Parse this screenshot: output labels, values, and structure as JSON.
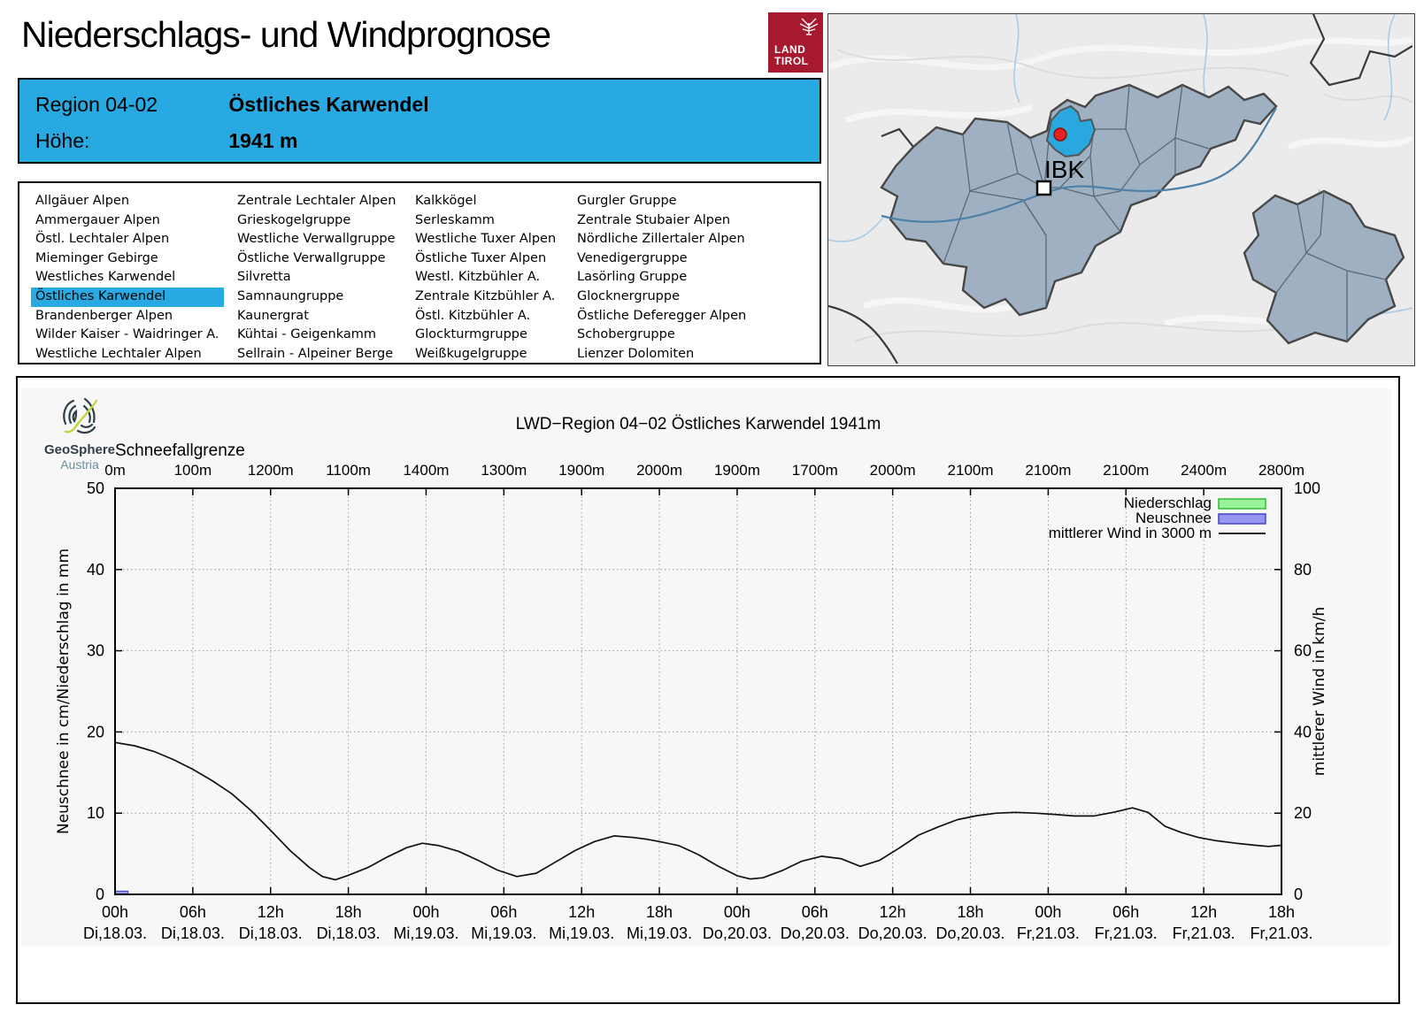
{
  "header": {
    "title": "Niederschlags- und Windprognose",
    "logo": {
      "line1": "LAND",
      "line2": "TIROL",
      "color": "#a6192e"
    }
  },
  "info_box": {
    "region_label": "Region 04-02",
    "region_name": "Östliches Karwendel",
    "hoehe_label": "Höhe:",
    "hoehe_value": "1941 m",
    "background": "#29a9e1"
  },
  "region_list": {
    "selected": "Östliches Karwendel",
    "columns": [
      [
        "Allgäuer Alpen",
        "Ammergauer Alpen",
        "Östl. Lechtaler Alpen",
        "Mieminger Gebirge",
        "Westliches Karwendel",
        "Östliches Karwendel",
        "Brandenberger Alpen",
        "Wilder Kaiser - Waidringer A.",
        "Westliche Lechtaler Alpen"
      ],
      [
        "Zentrale Lechtaler Alpen",
        "Grieskogelgruppe",
        "Westliche Verwallgruppe",
        "Östliche Verwallgruppe",
        "Silvretta",
        "Samnaungruppe",
        "Kaunergrat",
        "Kühtai - Geigenkamm",
        "Sellrain - Alpeiner Berge"
      ],
      [
        "Kalkkögel",
        "Serleskamm",
        "Westliche Tuxer Alpen",
        "Östliche Tuxer Alpen",
        "Westl. Kitzbühler A.",
        "Zentrale Kitzbühler A.",
        "Östl. Kitzbühler A.",
        "Glockturmgruppe",
        "Weißkugelgruppe"
      ],
      [
        "Gurgler Gruppe",
        "Zentrale Stubaier Alpen",
        "Nördliche Zillertaler Alpen",
        "Venedigergruppe",
        "Lasörling Gruppe",
        "Glocknergruppe",
        "Östliche Deferegger Alpen",
        "Schobergruppe",
        "Lienzer Dolomiten"
      ]
    ]
  },
  "map": {
    "city_label": "IBK",
    "region_fill": "#9fb0c2",
    "highlight_fill": "#29a8e0",
    "marker_color": "#e32222",
    "river_color": "#4f81a8",
    "stream_color": "#a8cce6",
    "background": "#ebebeb"
  },
  "geosphere": {
    "name": "GeoSphere",
    "country": "Austria"
  },
  "chart_data": {
    "type": "line",
    "title": "LWD−Region 04−02 Östliches Karwendel 1941m",
    "background": "#f7f7f7",
    "snowline": {
      "label": "Schneefallgrenze",
      "labels": [
        "0m",
        "100m",
        "1200m",
        "1100m",
        "1400m",
        "1300m",
        "1900m",
        "2000m",
        "1900m",
        "1700m",
        "2000m",
        "2100m",
        "2100m",
        "2100m",
        "2400m",
        "2800m"
      ],
      "values_m": [
        0,
        100,
        1200,
        1100,
        1400,
        1300,
        1900,
        2000,
        1900,
        1700,
        2000,
        2100,
        2100,
        2100,
        2400,
        2800
      ]
    },
    "x_axis": {
      "total_hours": 90,
      "tick_step_hours": 6,
      "ticks": [
        {
          "time": "00h",
          "date": "Di,18.03."
        },
        {
          "time": "06h",
          "date": "Di,18.03."
        },
        {
          "time": "12h",
          "date": "Di,18.03."
        },
        {
          "time": "18h",
          "date": "Di,18.03."
        },
        {
          "time": "00h",
          "date": "Mi,19.03."
        },
        {
          "time": "06h",
          "date": "Mi,19.03."
        },
        {
          "time": "12h",
          "date": "Mi,19.03."
        },
        {
          "time": "18h",
          "date": "Mi,19.03."
        },
        {
          "time": "00h",
          "date": "Do,20.03."
        },
        {
          "time": "06h",
          "date": "Do,20.03."
        },
        {
          "time": "12h",
          "date": "Do,20.03."
        },
        {
          "time": "18h",
          "date": "Do,20.03."
        },
        {
          "time": "00h",
          "date": "Fr,21.03."
        },
        {
          "time": "06h",
          "date": "Fr,21.03."
        },
        {
          "time": "12h",
          "date": "Fr,21.03."
        },
        {
          "time": "18h",
          "date": "Fr,21.03."
        }
      ]
    },
    "left_axis": {
      "label": "Neuschnee in cm/Niederschlag in mm",
      "min": 0,
      "max": 50,
      "ticks": [
        0,
        10,
        20,
        30,
        40,
        50
      ]
    },
    "right_axis": {
      "label": "mittlerer Wind in km/h",
      "min": 0,
      "max": 100,
      "ticks": [
        0,
        20,
        40,
        60,
        80,
        100
      ]
    },
    "legend": [
      {
        "label": "Niederschlag",
        "swatch": "box",
        "fill": "#99f499",
        "stroke": "#2db52d"
      },
      {
        "label": "Neuschnee",
        "swatch": "box",
        "fill": "#9695ef",
        "stroke": "#3b3bc8"
      },
      {
        "label": "mittlerer Wind in 3000 m",
        "swatch": "line",
        "stroke": "#000000"
      }
    ],
    "series": [
      {
        "name": "mittlerer Wind in 3000 m",
        "type": "line",
        "axis": "right",
        "unit": "km/h",
        "points": [
          [
            0,
            37.4
          ],
          [
            1.5,
            36.6
          ],
          [
            3,
            35.2
          ],
          [
            4.5,
            33.2
          ],
          [
            6,
            30.8
          ],
          [
            7.5,
            28.0
          ],
          [
            9,
            24.8
          ],
          [
            10.5,
            20.6
          ],
          [
            12,
            15.8
          ],
          [
            13.5,
            10.8
          ],
          [
            15,
            6.6
          ],
          [
            16,
            4.4
          ],
          [
            17,
            3.6
          ],
          [
            18,
            4.7
          ],
          [
            19.5,
            6.6
          ],
          [
            21,
            9.2
          ],
          [
            22.5,
            11.5
          ],
          [
            23.7,
            12.6
          ],
          [
            25,
            12.0
          ],
          [
            26.5,
            10.6
          ],
          [
            28,
            8.4
          ],
          [
            29.5,
            6.0
          ],
          [
            31,
            4.4
          ],
          [
            32.5,
            5.2
          ],
          [
            34,
            8.0
          ],
          [
            35.5,
            10.8
          ],
          [
            37,
            13.0
          ],
          [
            38.5,
            14.4
          ],
          [
            40,
            14.0
          ],
          [
            41,
            13.6
          ],
          [
            42,
            13.0
          ],
          [
            43.5,
            12.0
          ],
          [
            45,
            9.8
          ],
          [
            46.5,
            7.0
          ],
          [
            48,
            4.6
          ],
          [
            49,
            3.8
          ],
          [
            50,
            4.1
          ],
          [
            51.5,
            5.9
          ],
          [
            53,
            8.2
          ],
          [
            54.5,
            9.4
          ],
          [
            56,
            8.8
          ],
          [
            57.5,
            6.9
          ],
          [
            59,
            8.4
          ],
          [
            60.5,
            11.4
          ],
          [
            62,
            14.6
          ],
          [
            63.5,
            16.6
          ],
          [
            65,
            18.4
          ],
          [
            66.5,
            19.4
          ],
          [
            68,
            20.0
          ],
          [
            69.5,
            20.2
          ],
          [
            71,
            20.0
          ],
          [
            72.5,
            19.7
          ],
          [
            74,
            19.3
          ],
          [
            75.5,
            19.3
          ],
          [
            77,
            20.2
          ],
          [
            78.5,
            21.3
          ],
          [
            79.7,
            20.2
          ],
          [
            81,
            16.8
          ],
          [
            82.3,
            15.2
          ],
          [
            83.6,
            14.0
          ],
          [
            85,
            13.2
          ],
          [
            86.5,
            12.6
          ],
          [
            88,
            12.1
          ],
          [
            89,
            11.8
          ],
          [
            90,
            12.1
          ]
        ]
      },
      {
        "name": "Neuschnee",
        "type": "bar",
        "axis": "left",
        "unit": "cm",
        "bar_width_hours": 1,
        "points": [
          [
            0,
            0.4
          ]
        ]
      },
      {
        "name": "Niederschlag",
        "type": "bar",
        "axis": "left",
        "unit": "mm",
        "bar_width_hours": 1,
        "points": []
      }
    ]
  }
}
